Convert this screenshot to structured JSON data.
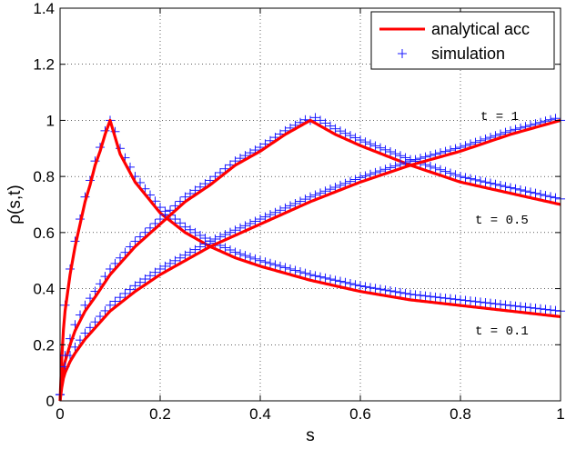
{
  "chart_data": {
    "type": "line",
    "xlabel": "s",
    "ylabel": "ρ(s,t)",
    "xlim": [
      0,
      1
    ],
    "ylim": [
      0,
      1.4
    ],
    "xticks": [
      "0",
      "0.2",
      "0.4",
      "0.6",
      "0.8",
      "1"
    ],
    "yticks": [
      "0",
      "0.2",
      "0.4",
      "0.6",
      "0.8",
      "1",
      "1.2",
      "1.4"
    ],
    "grid": true,
    "legend_position": "top-right",
    "legend": [
      {
        "label": "analytical acc",
        "style": "red line"
      },
      {
        "label": "simulation",
        "style": "blue plus markers"
      }
    ],
    "colors": {
      "analytical": "#ff0000",
      "simulation": "#1a1aff"
    },
    "series": [
      {
        "label": "t = 0.1",
        "peak_s": 0.1,
        "kind": "curve",
        "x": [
          0,
          0.005,
          0.01,
          0.02,
          0.03,
          0.04,
          0.05,
          0.06,
          0.07,
          0.08,
          0.09,
          0.1,
          0.12,
          0.15,
          0.2,
          0.25,
          0.3,
          0.35,
          0.4,
          0.5,
          0.6,
          0.7,
          0.8,
          0.9,
          1.0
        ],
        "y": [
          0,
          0.22,
          0.32,
          0.45,
          0.55,
          0.63,
          0.71,
          0.77,
          0.84,
          0.89,
          0.95,
          1.0,
          0.88,
          0.78,
          0.67,
          0.6,
          0.55,
          0.51,
          0.48,
          0.43,
          0.39,
          0.36,
          0.34,
          0.32,
          0.3
        ]
      },
      {
        "label": "t = 0.5",
        "peak_s": 0.5,
        "kind": "curve",
        "x": [
          0,
          0.005,
          0.01,
          0.02,
          0.03,
          0.05,
          0.07,
          0.1,
          0.15,
          0.2,
          0.25,
          0.3,
          0.35,
          0.4,
          0.45,
          0.5,
          0.55,
          0.6,
          0.7,
          0.8,
          0.9,
          1.0
        ],
        "y": [
          0,
          0.1,
          0.14,
          0.2,
          0.25,
          0.32,
          0.37,
          0.45,
          0.55,
          0.63,
          0.71,
          0.77,
          0.84,
          0.89,
          0.95,
          1.0,
          0.95,
          0.91,
          0.84,
          0.78,
          0.74,
          0.7
        ]
      },
      {
        "label": "t = 1",
        "peak_s": 1.0,
        "kind": "curve",
        "x": [
          0,
          0.005,
          0.01,
          0.02,
          0.03,
          0.05,
          0.07,
          0.1,
          0.15,
          0.2,
          0.25,
          0.3,
          0.4,
          0.5,
          0.6,
          0.7,
          0.8,
          0.9,
          1.0
        ],
        "y": [
          0,
          0.07,
          0.1,
          0.14,
          0.17,
          0.22,
          0.26,
          0.32,
          0.39,
          0.45,
          0.5,
          0.55,
          0.63,
          0.71,
          0.78,
          0.84,
          0.89,
          0.95,
          1.0
        ]
      }
    ]
  }
}
